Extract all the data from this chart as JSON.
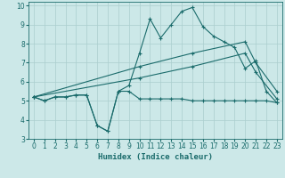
{
  "xlabel": "Humidex (Indice chaleur)",
  "bg_color": "#cce8e8",
  "line_color": "#1a6b6b",
  "grid_color": "#aacece",
  "xlim": [
    -0.5,
    23.5
  ],
  "ylim": [
    3,
    10.2
  ],
  "xticks": [
    0,
    1,
    2,
    3,
    4,
    5,
    6,
    7,
    8,
    9,
    10,
    11,
    12,
    13,
    14,
    15,
    16,
    17,
    18,
    19,
    20,
    21,
    22,
    23
  ],
  "yticks": [
    3,
    4,
    5,
    6,
    7,
    8,
    9,
    10
  ],
  "line1_x": [
    0,
    1,
    2,
    3,
    4,
    5,
    6,
    7,
    8,
    9,
    10,
    11,
    12,
    13,
    14,
    15,
    16,
    17,
    18,
    19,
    20,
    21,
    22,
    23
  ],
  "line1_y": [
    5.2,
    5.0,
    5.2,
    5.2,
    5.3,
    5.3,
    3.7,
    3.4,
    5.5,
    5.5,
    5.1,
    5.1,
    5.1,
    5.1,
    5.1,
    5.0,
    5.0,
    5.0,
    5.0,
    5.0,
    5.0,
    5.0,
    5.0,
    4.9
  ],
  "line2_x": [
    0,
    1,
    2,
    3,
    4,
    5,
    6,
    7,
    8,
    9,
    10,
    11,
    12,
    13,
    14,
    15,
    16,
    17,
    18,
    19,
    20,
    21,
    22,
    23
  ],
  "line2_y": [
    5.2,
    5.0,
    5.2,
    5.2,
    5.3,
    5.3,
    3.7,
    3.4,
    5.5,
    5.8,
    7.5,
    9.3,
    8.3,
    9.0,
    9.7,
    9.9,
    8.9,
    8.4,
    8.1,
    7.8,
    6.7,
    7.1,
    5.5,
    4.9
  ],
  "line3_x": [
    0,
    10,
    15,
    20,
    21,
    23
  ],
  "line3_y": [
    5.2,
    6.8,
    7.5,
    8.1,
    7.0,
    5.5
  ],
  "line4_x": [
    0,
    10,
    15,
    20,
    21,
    23
  ],
  "line4_y": [
    5.2,
    6.2,
    6.8,
    7.5,
    6.5,
    5.1
  ],
  "xlabel_fontsize": 6.5,
  "tick_fontsize": 5.5
}
